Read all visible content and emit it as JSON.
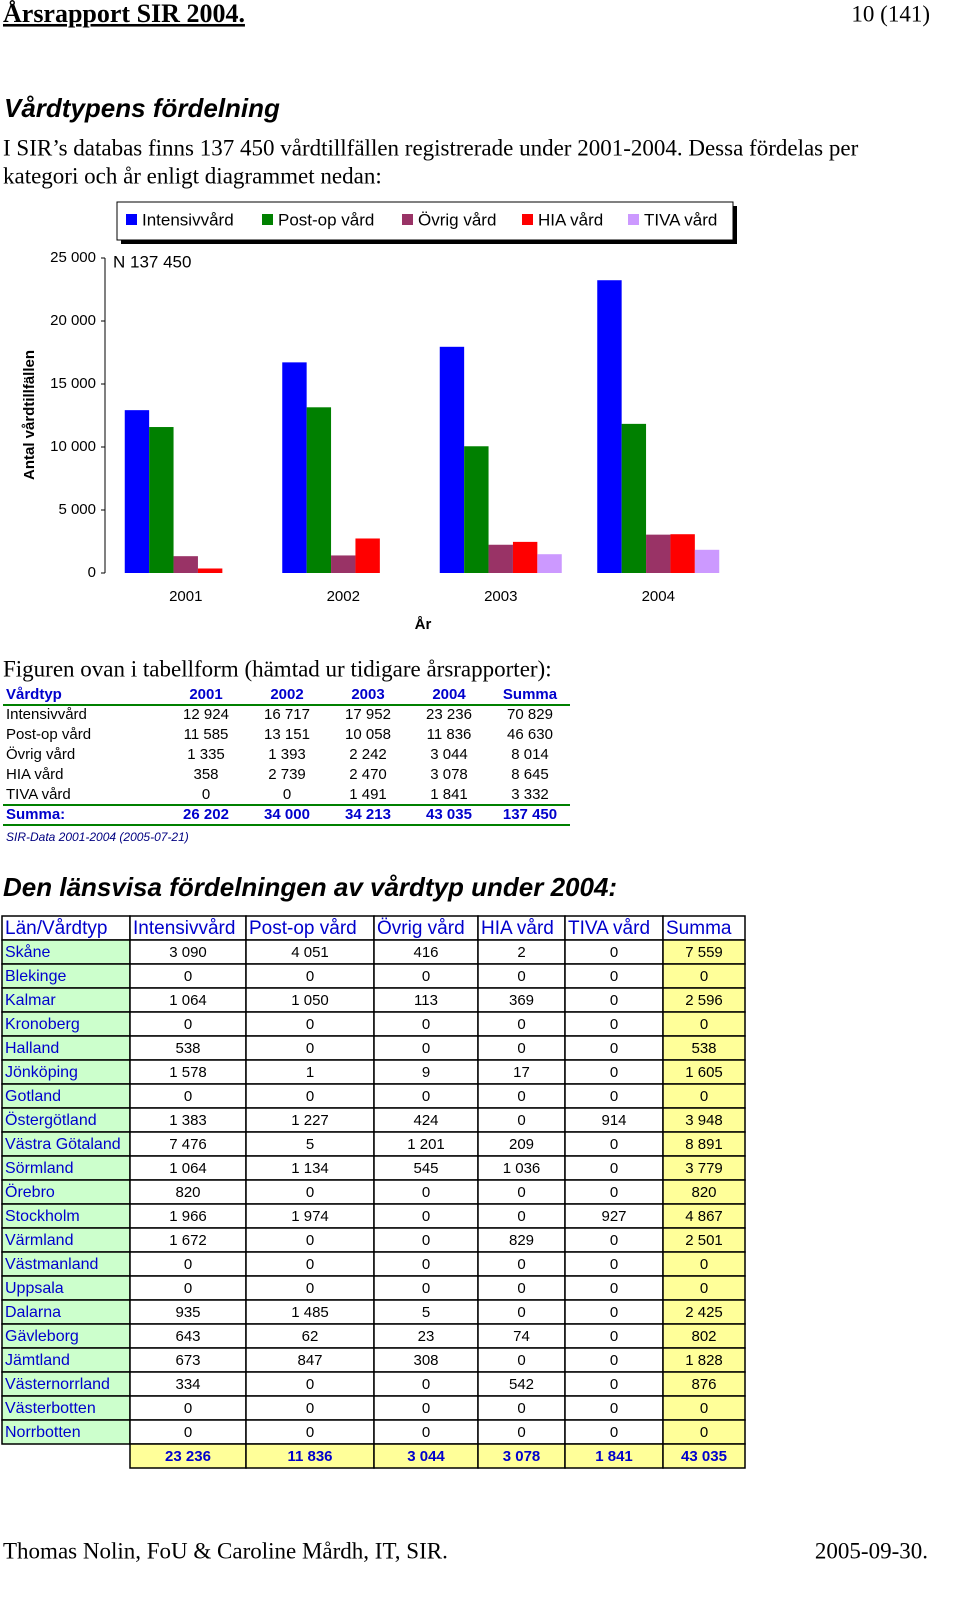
{
  "header": {
    "title": "Årsrapport SIR 2004.",
    "page": "10 (141)"
  },
  "section1": {
    "heading": "Vårdtypens fördelning",
    "lines": [
      "I SIR’s databas finns 137 450 vårdtillfällen registrerade under 2001-2004. Dessa fördelas per",
      "kategori och år enligt diagrammet nedan:"
    ]
  },
  "chart_data": {
    "type": "bar",
    "annotation": "N 137 450",
    "x_label": "År",
    "y_label": "Antal vårdtillfällen",
    "categories": [
      "2001",
      "2002",
      "2003",
      "2004"
    ],
    "series": [
      {
        "name": "Intensivvård",
        "color": "#0000ff",
        "values": [
          12924,
          16717,
          17952,
          23236
        ]
      },
      {
        "name": "Post-op vård",
        "color": "#008000",
        "values": [
          11585,
          13151,
          10058,
          11836
        ]
      },
      {
        "name": "Övrig vård",
        "color": "#993366",
        "values": [
          1335,
          1393,
          2242,
          3044
        ]
      },
      {
        "name": "HIA vård",
        "color": "#ff0000",
        "values": [
          358,
          2739,
          2470,
          3078
        ]
      },
      {
        "name": "TIVA vård",
        "color": "#cc99ff",
        "values": [
          0,
          0,
          1491,
          1841
        ]
      }
    ],
    "ylim": [
      0,
      25000
    ],
    "yticks": [
      0,
      {
        "value": 5000,
        "label": "5 000"
      },
      {
        "value": 10000,
        "label": "10 000"
      },
      {
        "value": 15000,
        "label": "15 000"
      },
      {
        "value": 20000,
        "label": "20 000"
      },
      {
        "value": 25000,
        "label": "25 000"
      }
    ],
    "grid": false,
    "legend": "top"
  },
  "table1": {
    "caption": "Figuren ovan i tabellform (hämtad ur tidigare årsrapporter):",
    "header": [
      "Vårdtyp",
      "2001",
      "2002",
      "2003",
      "2004",
      "Summa"
    ],
    "rows": [
      [
        "Intensivvård",
        "12 924",
        "16 717",
        "17 952",
        "23 236",
        "70 829"
      ],
      [
        "Post-op vård",
        "11 585",
        "13 151",
        "10 058",
        "11 836",
        "46 630"
      ],
      [
        "Övrig vård",
        "1 335",
        "1 393",
        "2 242",
        "3 044",
        "8 014"
      ],
      [
        "HIA vård",
        "358",
        "2 739",
        "2 470",
        "3 078",
        "8 645"
      ],
      [
        "TIVA vård",
        "0",
        "0",
        "1 491",
        "1 841",
        "3 332"
      ]
    ],
    "total": [
      "Summa:",
      "26 202",
      "34 000",
      "34 213",
      "43 035",
      "137 450"
    ],
    "note": "SIR-Data 2001-2004 (2005-07-21)"
  },
  "section2": {
    "heading": "Den länsvisa fördelningen av vårdtyp under 2004:"
  },
  "table2": {
    "header": [
      "Län/Vårdtyp",
      "Intensivvård",
      "Post-op vård",
      "Övrig vård",
      "HIA vård",
      "TIVA vård",
      "Summa"
    ],
    "rows": [
      [
        "Skåne",
        "3 090",
        "4 051",
        "416",
        "2",
        "0",
        "7 559"
      ],
      [
        "Blekinge",
        "0",
        "0",
        "0",
        "0",
        "0",
        "0"
      ],
      [
        "Kalmar",
        "1 064",
        "1 050",
        "113",
        "369",
        "0",
        "2 596"
      ],
      [
        "Kronoberg",
        "0",
        "0",
        "0",
        "0",
        "0",
        "0"
      ],
      [
        "Halland",
        "538",
        "0",
        "0",
        "0",
        "0",
        "538"
      ],
      [
        "Jönköping",
        "1 578",
        "1",
        "9",
        "17",
        "0",
        "1 605"
      ],
      [
        "Gotland",
        "0",
        "0",
        "0",
        "0",
        "0",
        "0"
      ],
      [
        "Östergötland",
        "1 383",
        "1 227",
        "424",
        "0",
        "914",
        "3 948"
      ],
      [
        "Västra Götaland",
        "7 476",
        "5",
        "1 201",
        "209",
        "0",
        "8 891"
      ],
      [
        "Sörmland",
        "1 064",
        "1 134",
        "545",
        "1 036",
        "0",
        "3 779"
      ],
      [
        "Örebro",
        "820",
        "0",
        "0",
        "0",
        "0",
        "820"
      ],
      [
        "Stockholm",
        "1 966",
        "1 974",
        "0",
        "0",
        "927",
        "4 867"
      ],
      [
        "Värmland",
        "1 672",
        "0",
        "0",
        "829",
        "0",
        "2 501"
      ],
      [
        "Västmanland",
        "0",
        "0",
        "0",
        "0",
        "0",
        "0"
      ],
      [
        "Uppsala",
        "0",
        "0",
        "0",
        "0",
        "0",
        "0"
      ],
      [
        "Dalarna",
        "935",
        "1 485",
        "5",
        "0",
        "0",
        "2 425"
      ],
      [
        "Gävleborg",
        "643",
        "62",
        "23",
        "74",
        "0",
        "802"
      ],
      [
        "Jämtland",
        "673",
        "847",
        "308",
        "0",
        "0",
        "1 828"
      ],
      [
        "Västernorrland",
        "334",
        "0",
        "0",
        "542",
        "0",
        "876"
      ],
      [
        "Västerbotten",
        "0",
        "0",
        "0",
        "0",
        "0",
        "0"
      ],
      [
        "Norrbotten",
        "0",
        "0",
        "0",
        "0",
        "0",
        "0"
      ]
    ],
    "total": [
      "23 236",
      "11 836",
      "3 044",
      "3 078",
      "1 841",
      "43 035"
    ]
  },
  "footer": {
    "left": "Thomas Nolin, FoU & Caroline Mårdh, IT, SIR.",
    "right": "2005-09-30."
  }
}
